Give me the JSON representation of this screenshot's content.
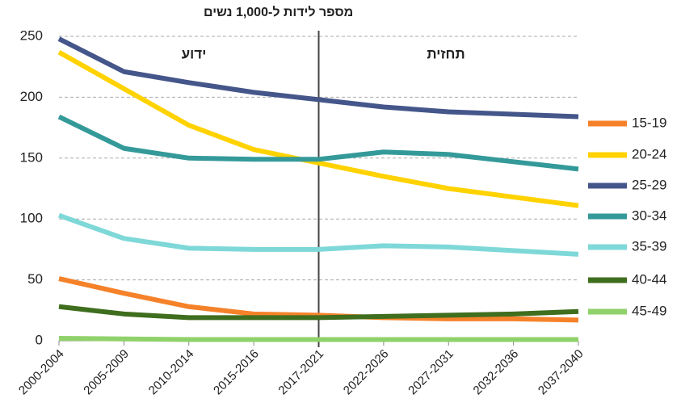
{
  "chart_data": {
    "type": "line",
    "y_axis_label": "מספר לידות ל-1,000 נשים",
    "annotations": [
      "ידוע",
      "תחזית"
    ],
    "categories": [
      "2000-2004",
      "2005-2009",
      "2010-2014",
      "2015-2016",
      "2017-2021",
      "2022-2026",
      "2027-2031",
      "2032-2036",
      "2037-2040"
    ],
    "series": [
      {
        "name": "15-19",
        "color": "#f5822a",
        "values": [
          51,
          39,
          28,
          22,
          21,
          19,
          18,
          18,
          17
        ]
      },
      {
        "name": "20-24",
        "color": "#ffd200",
        "values": [
          237,
          207,
          177,
          157,
          146,
          135,
          125,
          118,
          111
        ]
      },
      {
        "name": "25-29",
        "color": "#44568a",
        "values": [
          248,
          221,
          212,
          204,
          198,
          192,
          188,
          186,
          184
        ]
      },
      {
        "name": "30-34",
        "color": "#349a99",
        "values": [
          184,
          158,
          150,
          149,
          149,
          155,
          153,
          147,
          141
        ]
      },
      {
        "name": "35-39",
        "color": "#7fd8d8",
        "values": [
          103,
          84,
          76,
          75,
          75,
          78,
          77,
          74,
          71
        ]
      },
      {
        "name": "40-44",
        "color": "#3f6e1e",
        "values": [
          28,
          22,
          19,
          19,
          19,
          20,
          21,
          22,
          24
        ]
      },
      {
        "name": "45-49",
        "color": "#8fd26a",
        "values": [
          2,
          1.5,
          1,
          1,
          1,
          1,
          1,
          1,
          1
        ]
      }
    ],
    "ylim": [
      0,
      250
    ],
    "yticks": [
      0,
      50,
      100,
      150,
      200,
      250
    ],
    "grid": true,
    "legend": "right"
  }
}
